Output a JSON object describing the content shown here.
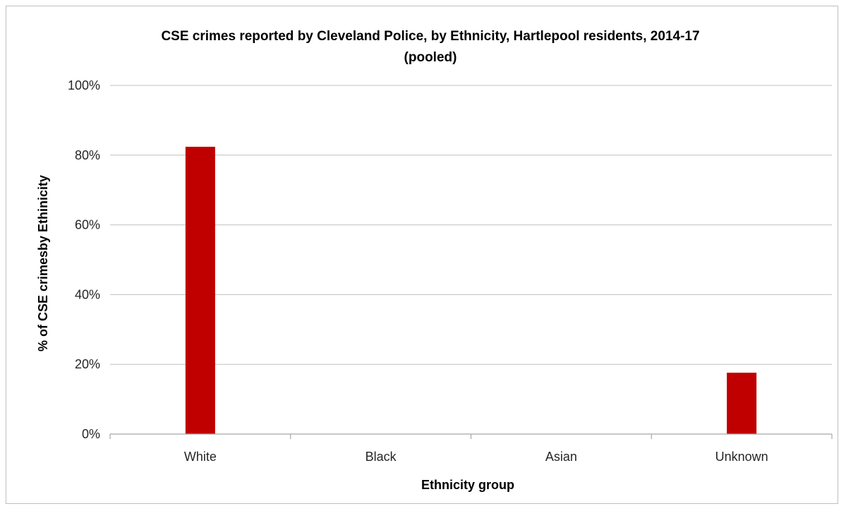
{
  "chart_data": {
    "type": "bar",
    "title_line1": "CSE crimes reported by Cleveland Police, by Ethnicity, Hartlepool residents, 2014-17",
    "title_line2": "(pooled)",
    "xlabel": "Ethnicity group",
    "ylabel": "% of CSE crimesby Ethinicity",
    "categories": [
      "White",
      "Black",
      "Asian",
      "Unknown"
    ],
    "values": [
      82.4,
      0,
      0,
      17.6
    ],
    "ylim": [
      0,
      100
    ],
    "yticks": [
      0,
      20,
      40,
      60,
      80,
      100
    ],
    "ytick_labels": [
      "0%",
      "20%",
      "40%",
      "60%",
      "80%",
      "100%"
    ],
    "grid": true,
    "legend": "none",
    "bar_color": "#c00000"
  }
}
